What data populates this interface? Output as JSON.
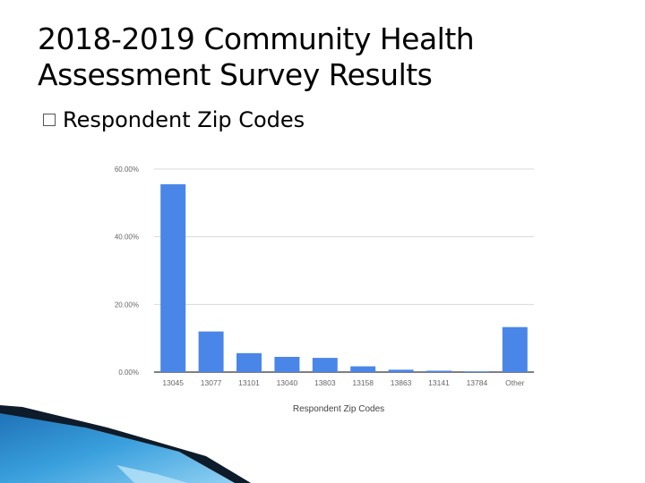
{
  "slide": {
    "title_line1": "2018-2019 Community Health",
    "title_line2": "Assessment Survey Results",
    "bullet": "Respondent Zip Codes"
  },
  "colors": {
    "bar": "#4a86e8",
    "grid": "#d9d9d9",
    "axis_text": "#666666",
    "corner_dark": "#0d1b2a",
    "corner_blue": "#2f8fd3",
    "corner_light": "#7cc4ee"
  },
  "chart_data": {
    "type": "bar",
    "title": "",
    "xlabel": "Respondent Zip Codes",
    "ylabel": "",
    "ylim": [
      0,
      60
    ],
    "y_ticks": [
      0,
      20,
      40,
      60
    ],
    "y_tick_labels": [
      "0.00%",
      "20.00%",
      "40.00%",
      "60.00%"
    ],
    "grid": true,
    "categories": [
      "13045",
      "13077",
      "13101",
      "13040",
      "13803",
      "13158",
      "13863",
      "13141",
      "13784",
      "Other"
    ],
    "values": [
      55.5,
      12.0,
      5.6,
      4.5,
      4.2,
      1.7,
      0.7,
      0.4,
      0.2,
      13.3
    ]
  }
}
